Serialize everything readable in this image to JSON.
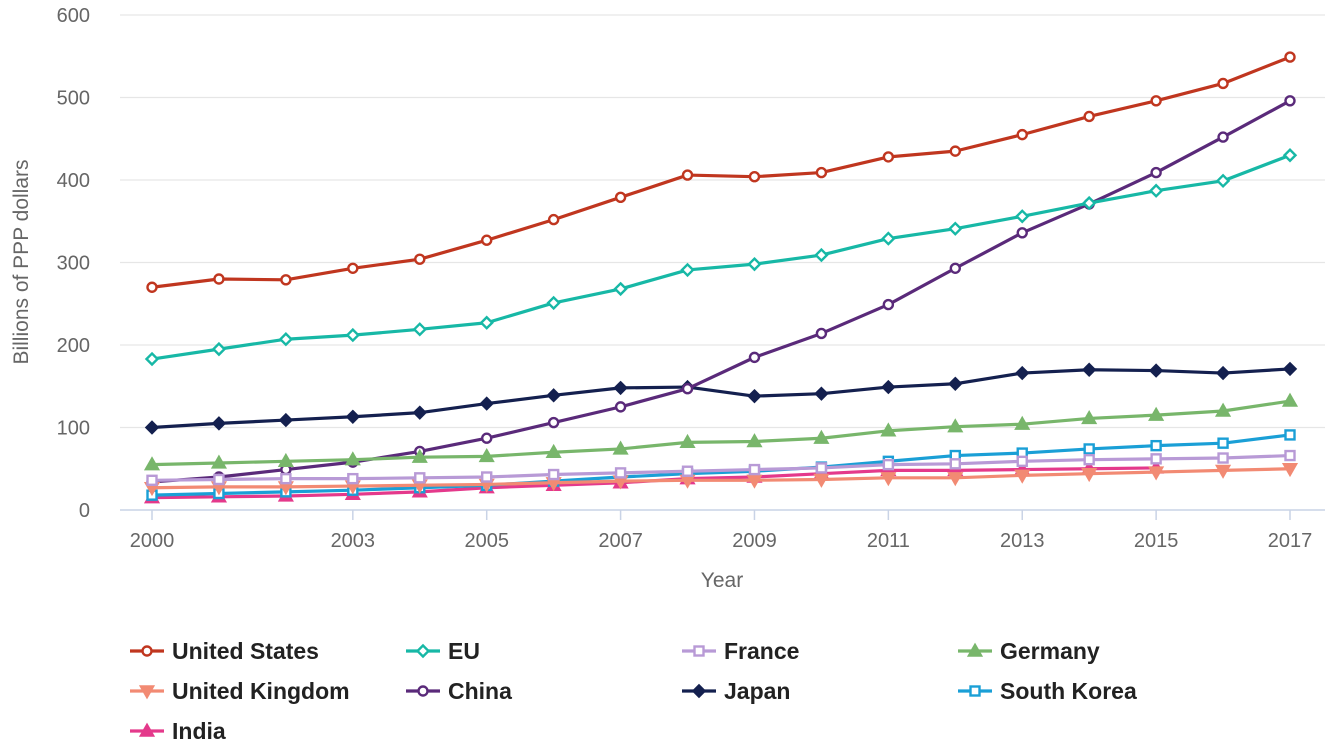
{
  "chart_data": {
    "type": "line",
    "xlabel": "Year",
    "ylabel": "Billions of PPP dollars",
    "ylim": [
      0,
      600
    ],
    "yticks": [
      "0",
      "100",
      "200",
      "300",
      "400",
      "500",
      "600"
    ],
    "xticks": [
      "2000",
      "2003",
      "2005",
      "2007",
      "2009",
      "2011",
      "2013",
      "2015",
      "2017"
    ],
    "grid": "horizontal",
    "legend_position": "bottom",
    "x": [
      2000,
      2001,
      2002,
      2003,
      2004,
      2005,
      2006,
      2007,
      2008,
      2009,
      2010,
      2011,
      2012,
      2013,
      2014,
      2015,
      2016,
      2017
    ],
    "series": [
      {
        "name": "United States",
        "color": "#c0361f",
        "marker": "circle-open",
        "values": [
          270,
          280,
          279,
          293,
          304,
          327,
          352,
          379,
          406,
          404,
          409,
          428,
          435,
          455,
          477,
          496,
          517,
          549
        ]
      },
      {
        "name": "EU",
        "color": "#17b8a6",
        "marker": "diamond-open",
        "values": [
          183,
          195,
          207,
          212,
          219,
          227,
          251,
          268,
          291,
          298,
          309,
          329,
          341,
          356,
          372,
          387,
          399,
          430
        ]
      },
      {
        "name": "France",
        "color": "#b89ad6",
        "marker": "square-open",
        "values": [
          36,
          37,
          38,
          38,
          39,
          40,
          43,
          45,
          47,
          49,
          51,
          55,
          56,
          59,
          61,
          62,
          63,
          66
        ]
      },
      {
        "name": "Germany",
        "color": "#78b66b",
        "marker": "triangle-up",
        "values": [
          55,
          57,
          59,
          61,
          64,
          65,
          70,
          74,
          82,
          83,
          87,
          96,
          101,
          104,
          111,
          115,
          120,
          132
        ]
      },
      {
        "name": "United Kingdom",
        "color": "#f28a73",
        "marker": "triangle-down",
        "values": [
          27,
          28,
          28,
          29,
          30,
          31,
          33,
          35,
          36,
          36,
          37,
          39,
          39,
          42,
          44,
          46,
          48,
          50
        ]
      },
      {
        "name": "China",
        "color": "#5a2a7a",
        "marker": "circle-open",
        "values": [
          34,
          40,
          49,
          58,
          71,
          87,
          106,
          125,
          147,
          185,
          214,
          249,
          293,
          336,
          371,
          409,
          452,
          496
        ]
      },
      {
        "name": "Japan",
        "color": "#14204f",
        "marker": "diamond",
        "values": [
          100,
          105,
          109,
          113,
          118,
          129,
          139,
          148,
          149,
          138,
          141,
          149,
          153,
          166,
          170,
          169,
          166,
          171
        ]
      },
      {
        "name": "South Korea",
        "color": "#1a9fd6",
        "marker": "square-open",
        "values": [
          18,
          20,
          22,
          24,
          27,
          30,
          35,
          40,
          44,
          47,
          52,
          59,
          66,
          69,
          74,
          78,
          81,
          91
        ]
      },
      {
        "name": "India",
        "color": "#e4398b",
        "marker": "triangle-up",
        "values": [
          15,
          16,
          17,
          19,
          22,
          27,
          30,
          33,
          38,
          40,
          44,
          48,
          48,
          49,
          50,
          51,
          null,
          null
        ]
      }
    ]
  }
}
